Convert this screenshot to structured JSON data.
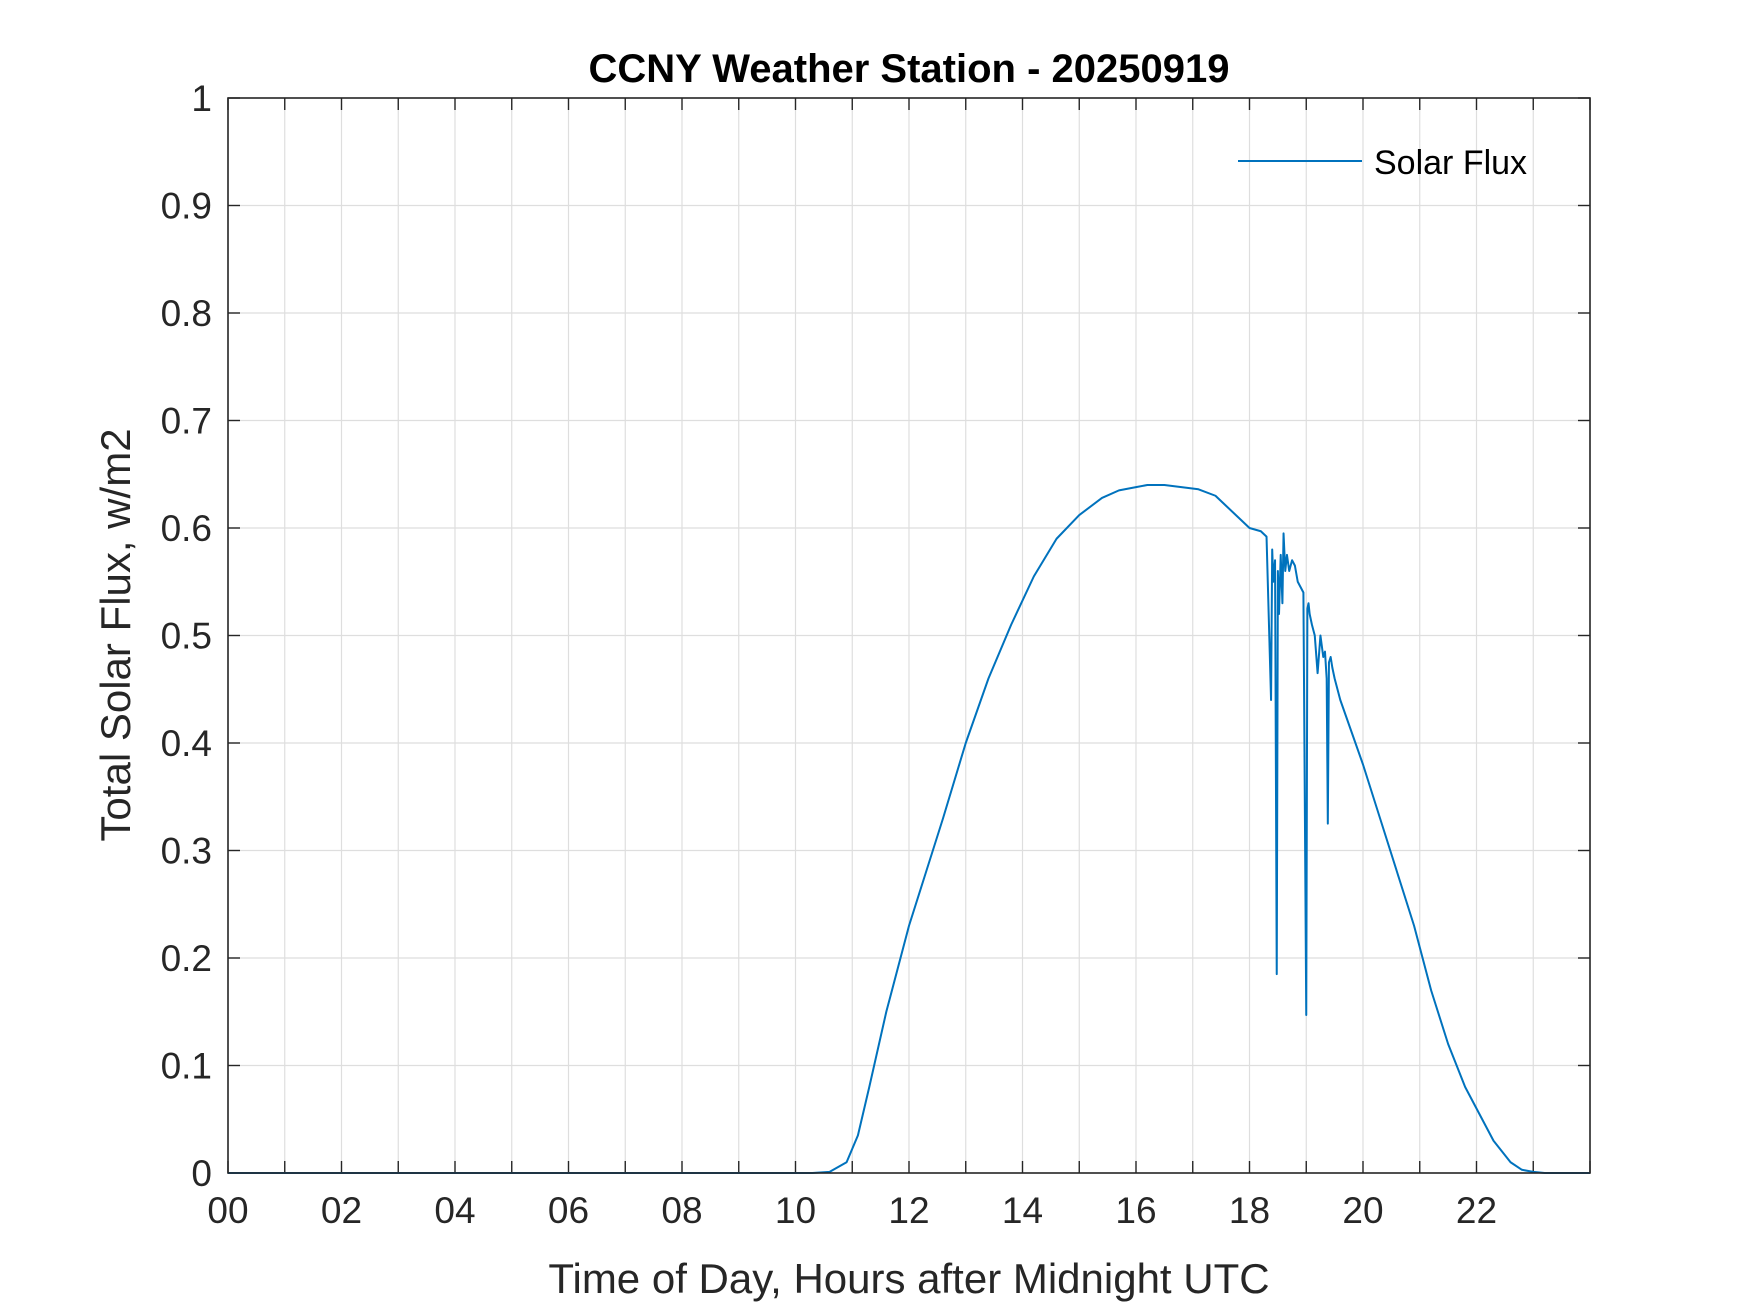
{
  "chart_data": {
    "type": "line",
    "title": "CCNY Weather Station - 20250919",
    "xlabel": "Time of Day, Hours after Midnight UTC",
    "ylabel": "Total Solar Flux, w/m2",
    "xlim": [
      0,
      24
    ],
    "ylim": [
      0,
      1
    ],
    "xticks": [
      0,
      2,
      4,
      6,
      8,
      10,
      12,
      14,
      16,
      18,
      20,
      22
    ],
    "xtick_labels": [
      "00",
      "02",
      "04",
      "06",
      "08",
      "10",
      "12",
      "14",
      "16",
      "18",
      "20",
      "22"
    ],
    "yticks": [
      0,
      0.1,
      0.2,
      0.3,
      0.4,
      0.5,
      0.6,
      0.7,
      0.8,
      0.9,
      1
    ],
    "ytick_labels": [
      "0",
      "0.1",
      "0.2",
      "0.3",
      "0.4",
      "0.5",
      "0.6",
      "0.7",
      "0.8",
      "0.9",
      "1"
    ],
    "grid": true,
    "legend_position": "top-right",
    "series": [
      {
        "name": "Solar Flux",
        "color": "#0072BD",
        "x": [
          0,
          10.3,
          10.6,
          10.9,
          11.1,
          11.3,
          11.6,
          12.0,
          12.3,
          12.6,
          13.0,
          13.4,
          13.8,
          14.2,
          14.6,
          15.0,
          15.4,
          15.7,
          16.0,
          16.2,
          16.5,
          16.8,
          17.1,
          17.4,
          17.6,
          17.8,
          18.0,
          18.2,
          18.3,
          18.38,
          18.4,
          18.42,
          18.45,
          18.48,
          18.5,
          18.52,
          18.55,
          18.58,
          18.6,
          18.63,
          18.66,
          18.7,
          18.75,
          18.8,
          18.85,
          18.9,
          18.95,
          19.0,
          19.02,
          19.04,
          19.06,
          19.1,
          19.15,
          19.2,
          19.25,
          19.3,
          19.33,
          19.36,
          19.38,
          19.4,
          19.43,
          19.46,
          19.5,
          19.6,
          19.8,
          20.0,
          20.3,
          20.6,
          20.9,
          21.2,
          21.5,
          21.8,
          22.0,
          22.3,
          22.6,
          22.8,
          23.0,
          23.2,
          23.5,
          24.0
        ],
        "y": [
          0,
          0,
          0.001,
          0.01,
          0.035,
          0.08,
          0.15,
          0.23,
          0.28,
          0.33,
          0.4,
          0.46,
          0.51,
          0.555,
          0.59,
          0.612,
          0.628,
          0.635,
          0.638,
          0.64,
          0.64,
          0.638,
          0.636,
          0.63,
          0.62,
          0.61,
          0.6,
          0.597,
          0.592,
          0.44,
          0.58,
          0.55,
          0.57,
          0.185,
          0.56,
          0.52,
          0.575,
          0.53,
          0.595,
          0.56,
          0.575,
          0.56,
          0.57,
          0.565,
          0.55,
          0.545,
          0.54,
          0.147,
          0.525,
          0.53,
          0.52,
          0.51,
          0.5,
          0.465,
          0.5,
          0.48,
          0.485,
          0.46,
          0.325,
          0.475,
          0.48,
          0.47,
          0.46,
          0.44,
          0.41,
          0.38,
          0.33,
          0.28,
          0.23,
          0.17,
          0.12,
          0.08,
          0.06,
          0.03,
          0.01,
          0.003,
          0.001,
          0,
          0,
          0
        ]
      }
    ]
  }
}
